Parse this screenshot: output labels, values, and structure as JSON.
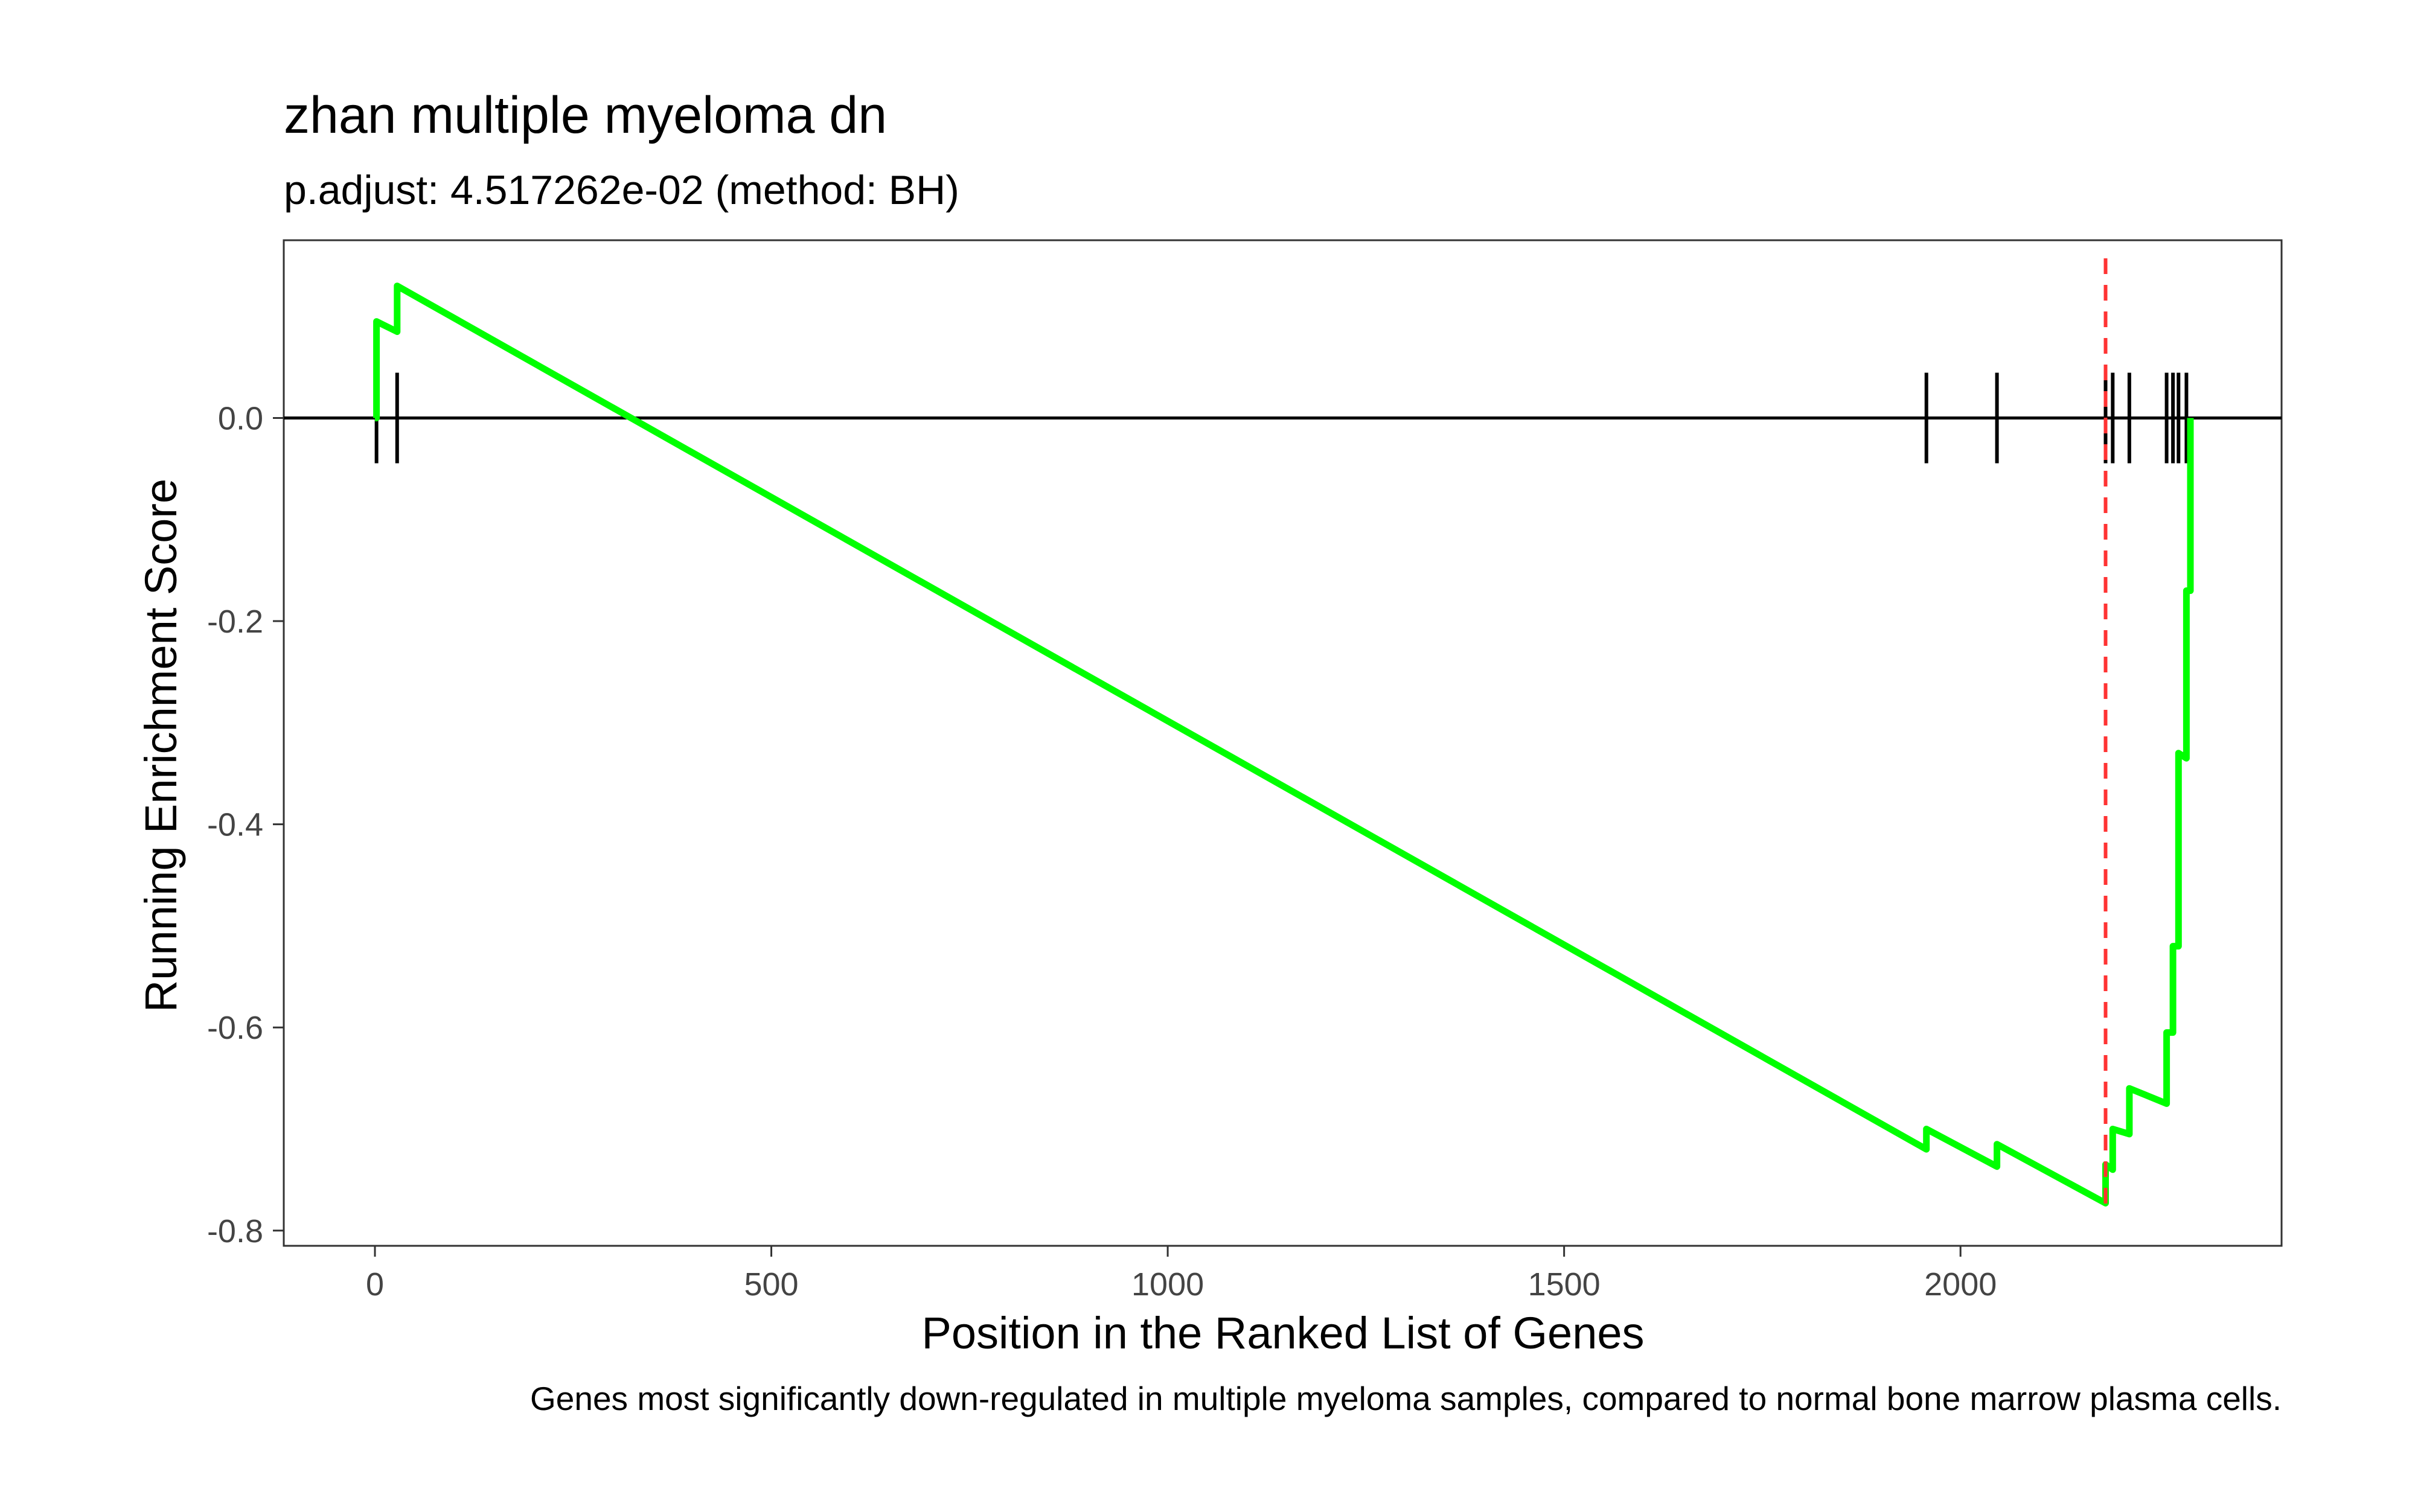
{
  "chart_data": {
    "type": "line",
    "title": "zhan multiple myeloma dn",
    "subtitle": "p.adjust: 4.517262e-02 (method: BH)",
    "xlabel": "Position in the Ranked List of Genes",
    "ylabel": "Running Enrichment Score",
    "caption": "Genes most significantly down-regulated in multiple myeloma samples, compared to normal bone marrow plasma cells.",
    "xlim": [
      -115,
      2405
    ],
    "ylim": [
      -0.815,
      0.175
    ],
    "x_ticks": [
      0,
      500,
      1000,
      1500,
      2000
    ],
    "x_tick_labels": [
      "0",
      "500",
      "1000",
      "1500",
      "2000"
    ],
    "y_ticks": [
      0.0,
      -0.2,
      -0.4,
      -0.6,
      -0.8
    ],
    "y_tick_labels": [
      "0.0",
      "-0.2",
      "-0.4",
      "-0.6",
      "-0.8"
    ],
    "grid": false,
    "colors": {
      "running_score": "#00ff00",
      "peak_line": "#ff3333",
      "hits": "#000000",
      "zero_line": "#000000",
      "panel_border": "#333333"
    },
    "reference_line_y": 0.0,
    "peak_position_x": 2183,
    "hit_positions": [
      2,
      28,
      1957,
      2046,
      2183,
      2192,
      2213,
      2260,
      2268,
      2275,
      2285
    ],
    "series": [
      {
        "values": [
          [
            0,
            0.0
          ],
          [
            2,
            0.0
          ],
          [
            2,
            0.095
          ],
          [
            28,
            0.085
          ],
          [
            28,
            0.13
          ],
          [
            1957,
            -0.72
          ],
          [
            1957,
            -0.7
          ],
          [
            2046,
            -0.737
          ],
          [
            2046,
            -0.715
          ],
          [
            2183,
            -0.773
          ],
          [
            2183,
            -0.735
          ],
          [
            2192,
            -0.74
          ],
          [
            2192,
            -0.7
          ],
          [
            2213,
            -0.705
          ],
          [
            2213,
            -0.66
          ],
          [
            2260,
            -0.675
          ],
          [
            2260,
            -0.605
          ],
          [
            2268,
            -0.605
          ],
          [
            2268,
            -0.52
          ],
          [
            2275,
            -0.52
          ],
          [
            2275,
            -0.33
          ],
          [
            2285,
            -0.335
          ],
          [
            2285,
            -0.17
          ],
          [
            2290,
            -0.17
          ],
          [
            2290,
            0.0
          ]
        ]
      }
    ]
  }
}
